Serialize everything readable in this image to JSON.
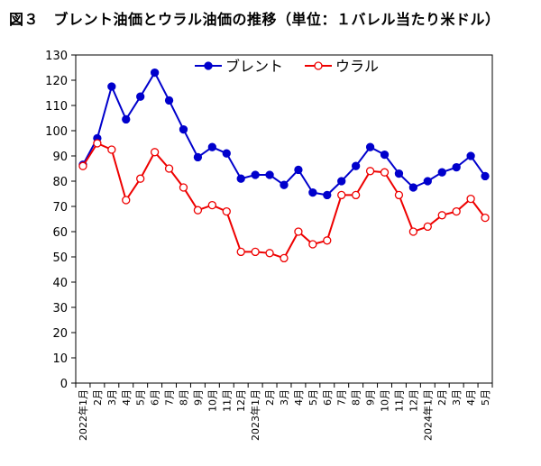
{
  "figure_title": "図３　ブレント油価とウラル油価の推移（単位：１バレル当たり米ドル）",
  "chart_data": {
    "type": "line",
    "title": "図３　ブレント油価とウラル油価の推移（単位：１バレル当たり米ドル）",
    "xlabel": "",
    "ylabel": "",
    "ylim": [
      0,
      130
    ],
    "yticks": [
      0,
      10,
      20,
      30,
      40,
      50,
      60,
      70,
      80,
      90,
      100,
      110,
      120,
      130
    ],
    "grid": false,
    "legend_position": "top",
    "categories": [
      "2022年1月",
      "2月",
      "3月",
      "4月",
      "5月",
      "6月",
      "7月",
      "8月",
      "9月",
      "10月",
      "11月",
      "12月",
      "2023年1月",
      "2月",
      "3月",
      "4月",
      "5月",
      "6月",
      "7月",
      "8月",
      "9月",
      "10月",
      "11月",
      "12月",
      "2024年1月",
      "2月",
      "3月",
      "4月",
      "5月"
    ],
    "series": [
      {
        "name": "ブレント",
        "color": "#0000cc",
        "marker": "filled-circle",
        "values": [
          86.5,
          97,
          117.5,
          104.5,
          113.5,
          123,
          112,
          100.5,
          89.5,
          93.5,
          91,
          81,
          82.5,
          82.5,
          78.5,
          84.5,
          75.5,
          74.5,
          80,
          86,
          93.5,
          90.5,
          83,
          77.5,
          80,
          83.5,
          85.5,
          90,
          82
        ]
      },
      {
        "name": "ウラル",
        "color": "#ee0000",
        "marker": "open-circle",
        "values": [
          86,
          95,
          92.5,
          72.5,
          81,
          91.5,
          85,
          77.5,
          68.5,
          70.5,
          68,
          52,
          52,
          51.5,
          49.5,
          60,
          55,
          56.5,
          74.5,
          74.5,
          84,
          83.5,
          74.5,
          60,
          62,
          66.5,
          68,
          73,
          65.5
        ]
      }
    ]
  }
}
